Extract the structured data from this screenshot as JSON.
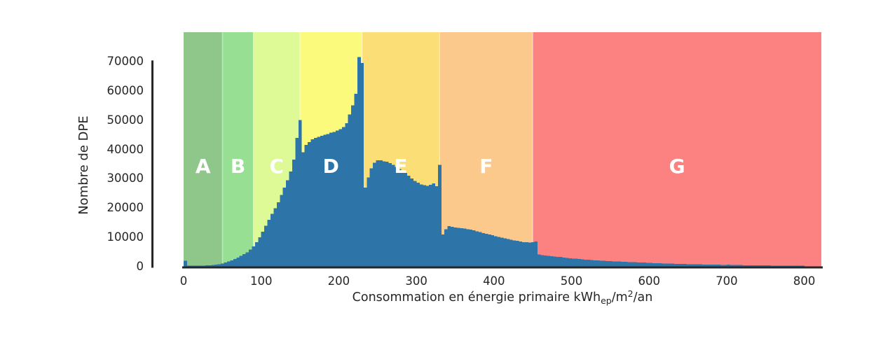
{
  "chart_data": {
    "type": "bar",
    "subtype": "histogram",
    "title": "",
    "ylabel": "Nombre de DPE",
    "xlabel_parts": {
      "text1": "Consommation en énergie primaire kWh",
      "sub": "ep",
      "text2": "/m",
      "sup": "2",
      "text3": "/an"
    },
    "yticks": [
      0,
      10000,
      20000,
      30000,
      40000,
      50000,
      60000,
      70000
    ],
    "xticks": [
      0,
      100,
      200,
      300,
      400,
      500,
      600,
      700,
      800
    ],
    "xlim": [
      0,
      822
    ],
    "ylim": [
      0,
      80000
    ],
    "grid": false,
    "legend": false,
    "bar_color": "#2d74a9",
    "axis_color": "#262626",
    "text_color": "#262626",
    "band_label_color": "#ffffff",
    "band_separator_color": "rgba(255,255,255,0.45)",
    "bands": [
      {
        "label": "A",
        "from": 0,
        "to": 50,
        "color": "#8ec789"
      },
      {
        "label": "B",
        "from": 50,
        "to": 90,
        "color": "#97e093"
      },
      {
        "label": "C",
        "from": 90,
        "to": 150,
        "color": "#ddfa96"
      },
      {
        "label": "D",
        "from": 150,
        "to": 230,
        "color": "#fbfa7c"
      },
      {
        "label": "E",
        "from": 230,
        "to": 330,
        "color": "#fbdf76"
      },
      {
        "label": "F",
        "from": 330,
        "to": 450,
        "color": "#fcc98d"
      },
      {
        "label": "G",
        "from": 450,
        "to": 822,
        "color": "#fc8181"
      }
    ],
    "bin_start": 0,
    "bin_width": 4,
    "values": [
      2000,
      400,
      300,
      300,
      300,
      350,
      400,
      450,
      520,
      600,
      720,
      880,
      1100,
      1400,
      1750,
      2150,
      2600,
      3100,
      3650,
      4250,
      4950,
      5800,
      6900,
      8300,
      10000,
      12000,
      14000,
      16000,
      18000,
      20000,
      22000,
      24500,
      27000,
      29500,
      32500,
      36500,
      44000,
      50000,
      39000,
      41500,
      42500,
      43500,
      44000,
      44300,
      44600,
      45000,
      45300,
      45700,
      46000,
      46400,
      46900,
      47600,
      49000,
      52000,
      55000,
      59000,
      71500,
      69500,
      27000,
      30500,
      33500,
      35500,
      36300,
      36300,
      36000,
      35800,
      35300,
      34700,
      34000,
      33300,
      32800,
      32000,
      31000,
      30100,
      29300,
      28600,
      28100,
      27800,
      27600,
      28000,
      28400,
      27500,
      34800,
      11000,
      12800,
      13800,
      13600,
      13400,
      13300,
      13100,
      13000,
      12800,
      12600,
      12400,
      12100,
      11800,
      11500,
      11200,
      11000,
      10700,
      10400,
      10200,
      9900,
      9700,
      9400,
      9200,
      9000,
      8800,
      8600,
      8400,
      8300,
      8200,
      8400,
      8600,
      4200,
      4000,
      3850,
      3700,
      3600,
      3500,
      3400,
      3300,
      3150,
      3000,
      2900,
      2800,
      2700,
      2600,
      2500,
      2400,
      2330,
      2260,
      2200,
      2130,
      2060,
      2000,
      1950,
      1900,
      1850,
      1800,
      1750,
      1700,
      1650,
      1600,
      1550,
      1500,
      1460,
      1420,
      1380,
      1340,
      1300,
      1250,
      1200,
      1160,
      1120,
      1080,
      1050,
      1020,
      990,
      960,
      930,
      900,
      870,
      840,
      820,
      800,
      780,
      760,
      740,
      720,
      700,
      680,
      660,
      640,
      620,
      750,
      600,
      580,
      560,
      540,
      520,
      505,
      490,
      475,
      460,
      450,
      440,
      430,
      420,
      410,
      400,
      390,
      380,
      370,
      360,
      350,
      345,
      340,
      330,
      320
    ]
  }
}
